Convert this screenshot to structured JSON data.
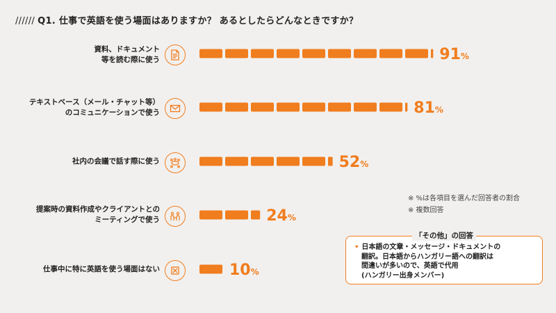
{
  "title": {
    "slashes": "//////",
    "text": "Q1. 仕事で英語を使う場面はありますか？ あるとしたらどんなときですか？"
  },
  "colors": {
    "accent": "#f07d1e",
    "background": "#f2f0ee"
  },
  "rows": [
    {
      "label_lines": [
        "資料、ドキュメント",
        "等を読む際に使う"
      ],
      "icon": "document-icon",
      "value_text": "91",
      "unit": "%"
    },
    {
      "label_lines": [
        "テキストベース（メール・チャット等）",
        "のコミュニケーションで使う"
      ],
      "icon": "envelope-icon",
      "value_text": "81",
      "unit": "%"
    },
    {
      "label_lines": [
        "社内の会議で話す際に使う"
      ],
      "icon": "meeting-table-icon",
      "value_text": "52",
      "unit": "%"
    },
    {
      "label_lines": [
        "提案時の資料作成やクライアントとの",
        "ミーティングで使う"
      ],
      "icon": "client-meeting-icon",
      "value_text": "24",
      "unit": "%"
    },
    {
      "label_lines": [
        "仕事中に特に英語を使う場面はない"
      ],
      "icon": "no-box-icon",
      "value_text": "10",
      "unit": "%"
    }
  ],
  "notes": [
    "※ %は各項目を選んだ回答者の割合",
    "※ 複数回答"
  ],
  "other_box": {
    "title": "「その他」の回答",
    "bullet": "•",
    "lines": [
      "日本語の文章・メッセージ・ドキュメントの",
      "翻訳。日本語からハンガリー語への翻訳は",
      "間違いが多いので、英語で代用",
      "(ハンガリー出身メンバー)"
    ]
  },
  "chart_data": {
    "type": "bar",
    "orientation": "horizontal",
    "categories": [
      "資料、ドキュメント等を読む際に使う",
      "テキストベース（メール・チャット等）のコミュニケーションで使う",
      "社内の会議で話す際に使う",
      "提案時の資料作成やクライアントとのミーティングで使う",
      "仕事中に特に英語を使う場面はない"
    ],
    "values": [
      91,
      81,
      52,
      24,
      10
    ],
    "value_unit": "%",
    "xlim": [
      0,
      100
    ],
    "grid": false,
    "legend": false,
    "bar_color": "#f07d1e"
  }
}
